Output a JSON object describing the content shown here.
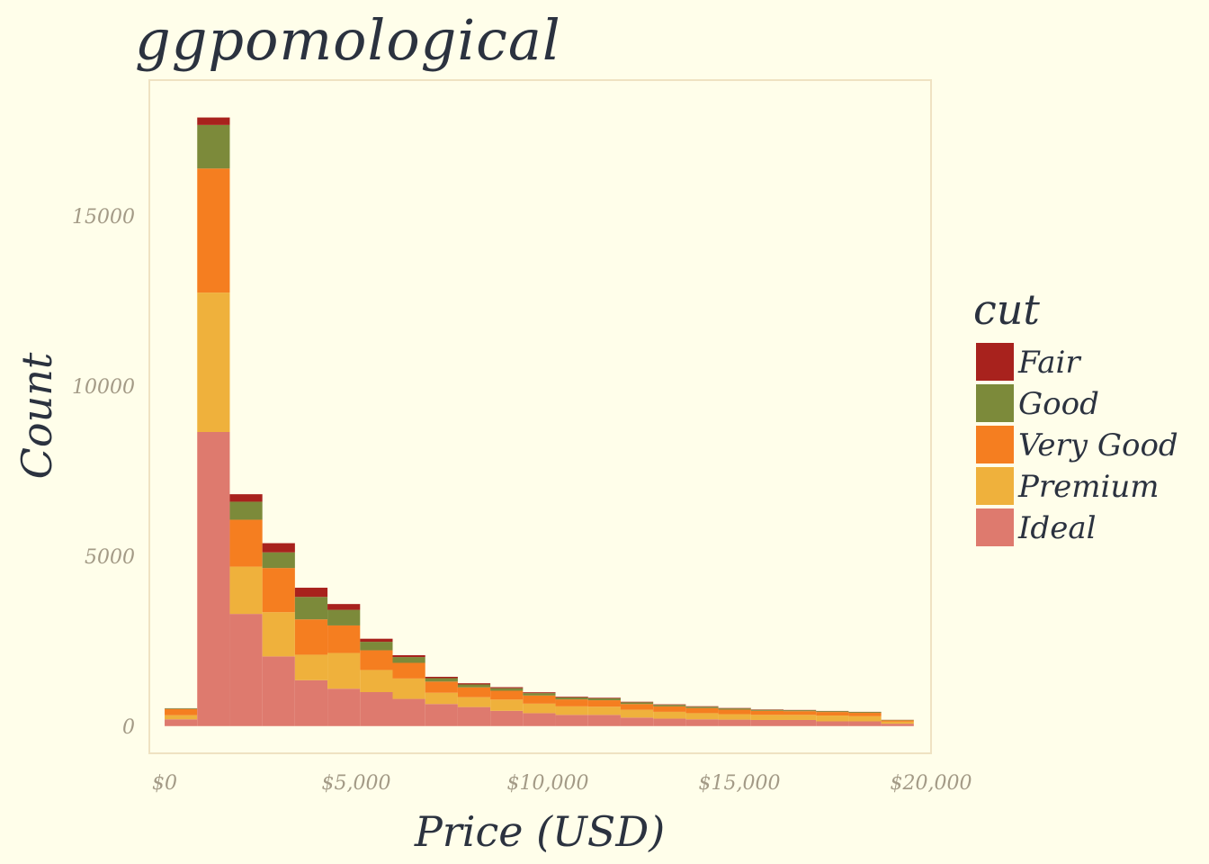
{
  "title": "ggpomological",
  "chart_data": {
    "type": "bar",
    "stacked": true,
    "xlabel": "Price (USD)",
    "ylabel": "Count",
    "xlim": [
      -400,
      20000
    ],
    "ylim": [
      -800,
      19000
    ],
    "x_ticks": [
      0,
      5000,
      10000,
      15000,
      20000
    ],
    "x_tick_labels": [
      "$0",
      "$5,000",
      "$10,000",
      "$15,000",
      "$20,000"
    ],
    "y_ticks": [
      0,
      5000,
      10000,
      15000
    ],
    "y_tick_labels": [
      "0",
      "5000",
      "10000",
      "15000"
    ],
    "bin_width": 850,
    "bin_starts": [
      0,
      850,
      1700,
      2550,
      3400,
      4250,
      5100,
      5950,
      6800,
      7650,
      8500,
      9350,
      10200,
      11050,
      11900,
      12750,
      13600,
      14450,
      15300,
      16150,
      17000,
      17850,
      18700
    ],
    "legend": {
      "title": "cut",
      "position": "right"
    },
    "grid": false,
    "series": [
      {
        "name": "Fair",
        "color": "#A8221D",
        "values": [
          5,
          220,
          220,
          270,
          270,
          170,
          90,
          55,
          40,
          35,
          30,
          25,
          20,
          18,
          16,
          15,
          14,
          12,
          10,
          8,
          6,
          5,
          3
        ]
      },
      {
        "name": "Good",
        "color": "#7C8A3A",
        "values": [
          20,
          1280,
          530,
          460,
          660,
          460,
          250,
          170,
          100,
          85,
          75,
          70,
          60,
          55,
          50,
          45,
          40,
          35,
          30,
          27,
          25,
          25,
          12
        ]
      },
      {
        "name": "Very Good",
        "color": "#F57E20",
        "values": [
          180,
          3650,
          1380,
          1300,
          1040,
          810,
          580,
          460,
          330,
          290,
          260,
          240,
          205,
          190,
          170,
          160,
          150,
          135,
          120,
          110,
          105,
          100,
          40
        ]
      },
      {
        "name": "Premium",
        "color": "#EFB13C",
        "values": [
          120,
          4100,
          1390,
          1300,
          750,
          1050,
          650,
          600,
          330,
          290,
          330,
          280,
          250,
          240,
          230,
          200,
          180,
          160,
          150,
          150,
          170,
          150,
          60
        ]
      },
      {
        "name": "Ideal",
        "color": "#DE7A6E",
        "values": [
          200,
          8650,
          3300,
          2050,
          1350,
          1100,
          1000,
          800,
          650,
          560,
          450,
          380,
          330,
          330,
          250,
          220,
          200,
          190,
          180,
          180,
          140,
          140,
          70
        ]
      }
    ]
  }
}
